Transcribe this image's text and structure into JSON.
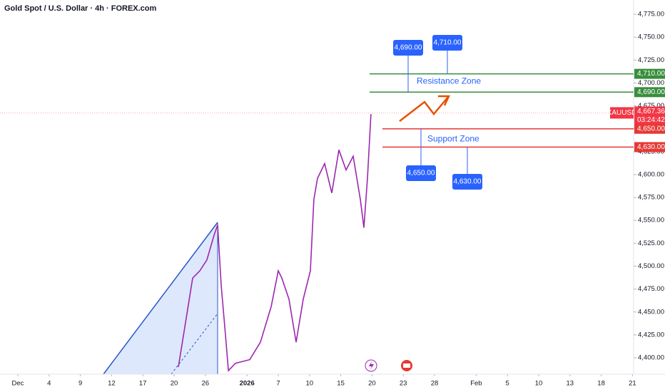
{
  "chart_data": {
    "type": "line",
    "title": "Gold Spot / U.S. Dollar · 4h · FOREX.com",
    "series": [
      {
        "name": "XAUUSD",
        "color": "#9c27b0",
        "x": [
          15.41,
          16.23,
          16.78,
          17.47,
          18.15,
          18.84,
          19.18,
          19.52,
          19.93,
          20.21,
          20.89,
          22.26,
          23.29,
          24.32,
          25.0,
          25.34,
          26.03,
          26.71,
          27.4,
          28.08,
          28.42,
          28.77,
          29.45,
          30.14,
          30.82,
          31.51,
          32.19,
          32.88,
          33.22,
          33.56,
          33.9
        ],
        "values": [
          4390,
          4448,
          4487,
          4495,
          4507,
          4534,
          4545,
          4479,
          4425,
          4386,
          4394,
          4398,
          4417,
          4456,
          4495,
          4487,
          4464,
          4417,
          4464,
          4495,
          4573,
          4596,
          4612,
          4580,
          4627,
          4605,
          4620,
          4573,
          4542,
          4596,
          4666
        ]
      }
    ],
    "last_price": {
      "value": 4667.36,
      "label": "4,667.36"
    },
    "countdown": "03:24:42",
    "levels": [
      {
        "value": 4710,
        "label": "4,710.00",
        "color": "#388e3c"
      },
      {
        "value": 4690,
        "label": "4,690.00",
        "color": "#388e3c"
      },
      {
        "value": 4650,
        "label": "4,650.00",
        "color": "#e53935"
      },
      {
        "value": 4630,
        "label": "4,630.00",
        "color": "#e53935"
      }
    ],
    "zones": [
      "Resistance Zone",
      "Support Zone"
    ],
    "xlim": [
      -1.712,
      59.11
    ],
    "ylim": [
      4382.1,
      4790.6
    ],
    "xticks": [
      {
        "value": 0,
        "label": "Dec"
      },
      {
        "value": 3,
        "label": "4"
      },
      {
        "value": 6,
        "label": "9"
      },
      {
        "value": 9,
        "label": "12"
      },
      {
        "value": 12,
        "label": "17"
      },
      {
        "value": 15,
        "label": "20"
      },
      {
        "value": 18,
        "label": "26"
      },
      {
        "value": 22,
        "label": "2026"
      },
      {
        "value": 25,
        "label": "7"
      },
      {
        "value": 28,
        "label": "10"
      },
      {
        "value": 31,
        "label": "15"
      },
      {
        "value": 34,
        "label": "20"
      },
      {
        "value": 37,
        "label": "23"
      },
      {
        "value": 40,
        "label": "28"
      },
      {
        "value": 44,
        "label": "Feb"
      },
      {
        "value": 47,
        "label": "5"
      },
      {
        "value": 50,
        "label": "10"
      },
      {
        "value": 53,
        "label": "13"
      },
      {
        "value": 56,
        "label": "18"
      },
      {
        "value": 59,
        "label": "21"
      }
    ],
    "yticks": [
      {
        "value": 4400,
        "label": "4,400.00"
      },
      {
        "value": 4425,
        "label": "4,425.00"
      },
      {
        "value": 4450,
        "label": "4,450.00"
      },
      {
        "value": 4475,
        "label": "4,475.00"
      },
      {
        "value": 4500,
        "label": "4,500.00"
      },
      {
        "value": 4525,
        "label": "4,525.00"
      },
      {
        "value": 4550,
        "label": "4,550.00"
      },
      {
        "value": 4575,
        "label": "4,575.00"
      },
      {
        "value": 4600,
        "label": "4,600.00"
      },
      {
        "value": 4625,
        "label": "4,625.00"
      },
      {
        "value": 4650,
        "label": "4,650.00"
      },
      {
        "value": 4675,
        "label": "4,675.00"
      },
      {
        "value": 4700,
        "label": "4,700.00"
      },
      {
        "value": 4725,
        "label": "4,725.00"
      },
      {
        "value": 4750,
        "label": "4,750.00"
      },
      {
        "value": 4775,
        "label": "4,775.00"
      }
    ],
    "grid": false
  }
}
